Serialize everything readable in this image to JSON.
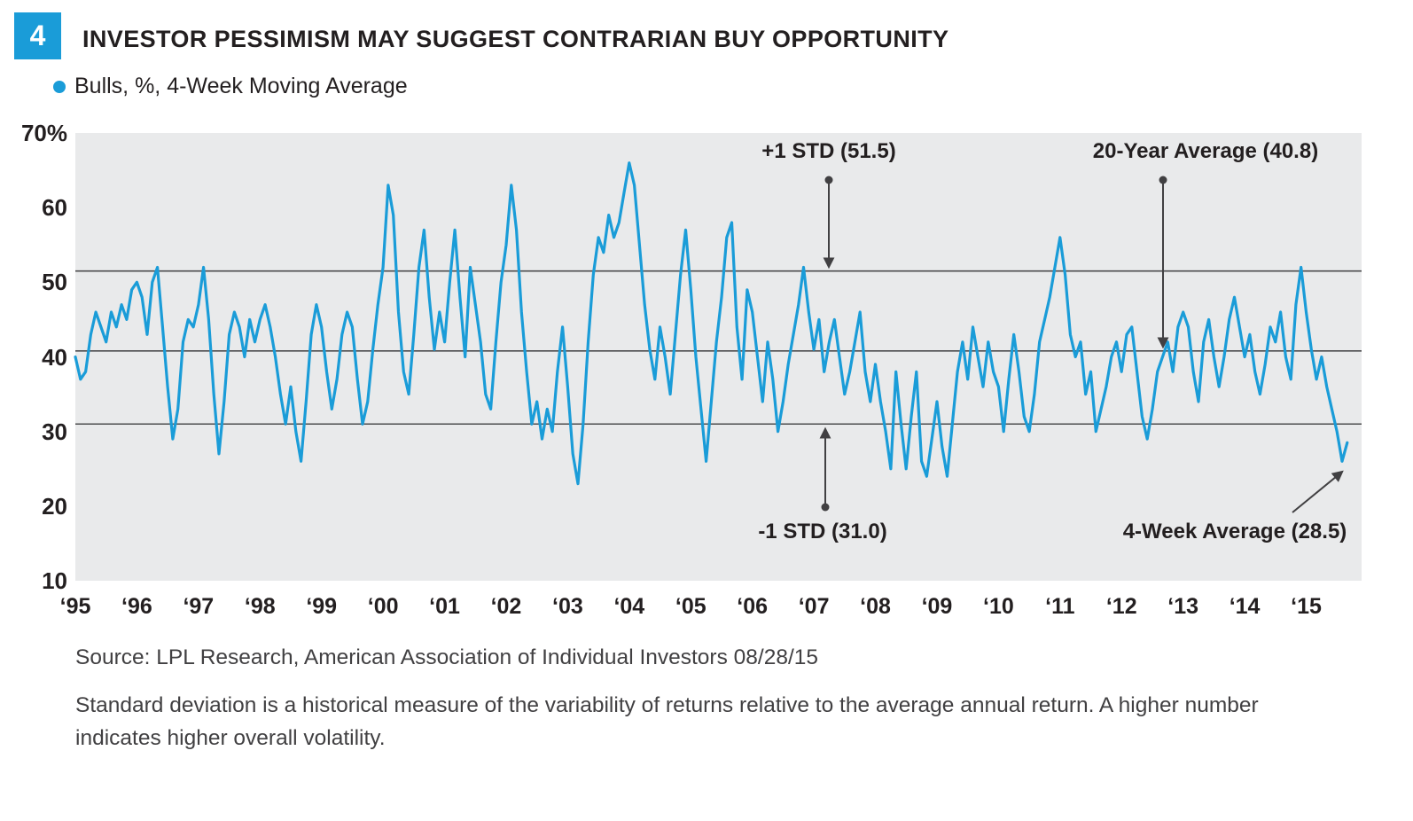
{
  "figure": {
    "number": "4",
    "title": "INVESTOR PESSIMISM MAY SUGGEST CONTRARIAN BUY OPPORTUNITY"
  },
  "legend": {
    "label": "Bulls, %, 4-Week Moving Average"
  },
  "colors": {
    "accent_blue": "#1a9cd8",
    "plot_background": "#e9eaeb",
    "reference_line": "#4d4d4f",
    "annotation": "#414042"
  },
  "chart_data": {
    "type": "line",
    "title": "INVESTOR PESSIMISM MAY SUGGEST CONTRARIAN BUY OPPORTUNITY",
    "legend_position": "top-left",
    "grid": false,
    "ylim": [
      10,
      70
    ],
    "x_range_years": [
      1995.0,
      2015.9
    ],
    "y_ticks": [
      {
        "value": 70,
        "label": "70%"
      },
      {
        "value": 60,
        "label": "60"
      },
      {
        "value": 50,
        "label": "50"
      },
      {
        "value": 40,
        "label": "40"
      },
      {
        "value": 30,
        "label": "30"
      },
      {
        "value": 20,
        "label": "20"
      },
      {
        "value": 10,
        "label": "10"
      }
    ],
    "x_ticks": [
      {
        "value": 1995,
        "label": "‘95"
      },
      {
        "value": 1996,
        "label": "‘96"
      },
      {
        "value": 1997,
        "label": "‘97"
      },
      {
        "value": 1998,
        "label": "‘98"
      },
      {
        "value": 1999,
        "label": "‘99"
      },
      {
        "value": 2000,
        "label": "‘00"
      },
      {
        "value": 2001,
        "label": "‘01"
      },
      {
        "value": 2002,
        "label": "‘02"
      },
      {
        "value": 2003,
        "label": "‘03"
      },
      {
        "value": 2004,
        "label": "‘04"
      },
      {
        "value": 2005,
        "label": "‘05"
      },
      {
        "value": 2006,
        "label": "‘06"
      },
      {
        "value": 2007,
        "label": "‘07"
      },
      {
        "value": 2008,
        "label": "‘08"
      },
      {
        "value": 2009,
        "label": "‘09"
      },
      {
        "value": 2010,
        "label": "‘10"
      },
      {
        "value": 2011,
        "label": "‘11"
      },
      {
        "value": 2012,
        "label": "‘12"
      },
      {
        "value": 2013,
        "label": "‘13"
      },
      {
        "value": 2014,
        "label": "‘14"
      },
      {
        "value": 2015,
        "label": "‘15"
      }
    ],
    "reference_lines": [
      {
        "name": "plus_one_std",
        "value": 51.5,
        "label": "+1 STD (51.5)"
      },
      {
        "name": "twenty_year_average",
        "value": 40.8,
        "label": "20-Year Average (40.8)"
      },
      {
        "name": "minus_one_std",
        "value": 31.0,
        "label": "-1 STD (31.0)"
      }
    ],
    "annotations": {
      "plus_std": "+1 STD (51.5)",
      "avg_20yr": "20-Year Average (40.8)",
      "minus_std": "-1 STD (31.0)",
      "last_value": "4-Week Average (28.5)"
    },
    "last_value": 28.5,
    "series": [
      {
        "name": "Bulls, %, 4-Week Moving Average",
        "color": "#1a9cd8",
        "x_start": 1995.0,
        "x_step_years": 0.0833333,
        "values": [
          40,
          37,
          38,
          43,
          46,
          44,
          42,
          46,
          44,
          47,
          45,
          49,
          50,
          48,
          43,
          50,
          52,
          44,
          36,
          29,
          33,
          42,
          45,
          44,
          47,
          52,
          45,
          35,
          27,
          34,
          43,
          46,
          44,
          40,
          45,
          42,
          45,
          47,
          44,
          40,
          35,
          31,
          36,
          30,
          26,
          34,
          43,
          47,
          44,
          38,
          33,
          37,
          43,
          46,
          44,
          37,
          31,
          34,
          41,
          47,
          52,
          63,
          59,
          46,
          38,
          35,
          43,
          52,
          57,
          48,
          41,
          46,
          42,
          50,
          57,
          48,
          40,
          52,
          47,
          42,
          35,
          33,
          42,
          50,
          55,
          63,
          57,
          46,
          38,
          31,
          34,
          29,
          33,
          30,
          38,
          44,
          36,
          27,
          23,
          31,
          42,
          51,
          56,
          54,
          59,
          56,
          58,
          62,
          66,
          63,
          55,
          47,
          41,
          37,
          44,
          40,
          35,
          43,
          51,
          57,
          49,
          40,
          33,
          26,
          34,
          42,
          48,
          56,
          58,
          44,
          37,
          49,
          46,
          40,
          34,
          42,
          37,
          30,
          34,
          39,
          43,
          47,
          52,
          46,
          41,
          45,
          38,
          42,
          45,
          40,
          35,
          38,
          42,
          46,
          38,
          34,
          39,
          34,
          30,
          25,
          38,
          31,
          25,
          32,
          38,
          26,
          24,
          29,
          34,
          28,
          24,
          31,
          38,
          42,
          37,
          44,
          40,
          36,
          42,
          38,
          36,
          30,
          37,
          43,
          38,
          32,
          30,
          35,
          42,
          45,
          48,
          52,
          56,
          51,
          43,
          40,
          42,
          35,
          38,
          30,
          33,
          36,
          40,
          42,
          38,
          43,
          44,
          38,
          32,
          29,
          33,
          38,
          40,
          42,
          38,
          44,
          46,
          44,
          38,
          34,
          42,
          45,
          40,
          36,
          40,
          45,
          48,
          44,
          40,
          43,
          38,
          35,
          39,
          44,
          42,
          46,
          40,
          37,
          47,
          52,
          46,
          41,
          37,
          40,
          36,
          33,
          30,
          26,
          28.5
        ]
      }
    ]
  },
  "footer": {
    "source": "Source: LPL Research, American Association of Individual Investors  08/28/15",
    "note": "Standard deviation is a historical measure of the variability of returns relative to the average annual return. A higher number indicates higher overall volatility."
  }
}
